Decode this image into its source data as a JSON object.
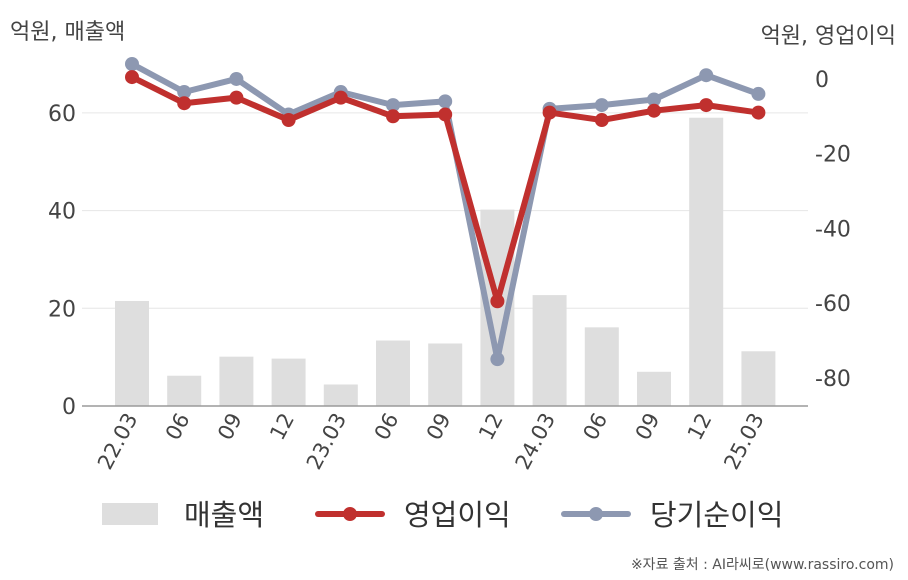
{
  "chart_data": {
    "type": "bar+line",
    "ylabel_left": "억원, 매출액",
    "ylabel_right": "억원, 영업이익",
    "categories": [
      "22.03",
      "06",
      "09",
      "12",
      "23.03",
      "06",
      "09",
      "12",
      "24.03",
      "06",
      "09",
      "12",
      "25.03"
    ],
    "ylim_left": [
      0,
      70
    ],
    "yticks_left": [
      0,
      20,
      40,
      60
    ],
    "ylim_right": [
      -87,
      4
    ],
    "yticks_right": [
      0,
      -20,
      -40,
      -60,
      -80
    ],
    "series": [
      {
        "name": "매출액",
        "kind": "bar",
        "axis": "left",
        "color": "#dedede",
        "values": [
          21.5,
          6.2,
          10.1,
          9.7,
          4.4,
          13.4,
          12.8,
          40.2,
          22.7,
          16.1,
          7.0,
          59.0,
          11.2
        ]
      },
      {
        "name": "영업이익",
        "kind": "line",
        "axis": "right",
        "color": "#c0302e",
        "values": [
          0.5,
          -6.5,
          -5,
          -11,
          -5,
          -10,
          -9.5,
          -59.5,
          -9,
          -11,
          -8.5,
          -7,
          -9
        ]
      },
      {
        "name": "당기순이익",
        "kind": "line",
        "axis": "right",
        "color": "#8d98b1",
        "values": [
          4,
          -3.5,
          0,
          -9.5,
          -3.5,
          -7,
          -6,
          -75,
          -8,
          -7,
          -5.5,
          1,
          -4
        ]
      }
    ],
    "grid": true,
    "legend_position": "bottom"
  },
  "source_text": "※자료 출처 : AI라씨로(www.rassiro.com)"
}
